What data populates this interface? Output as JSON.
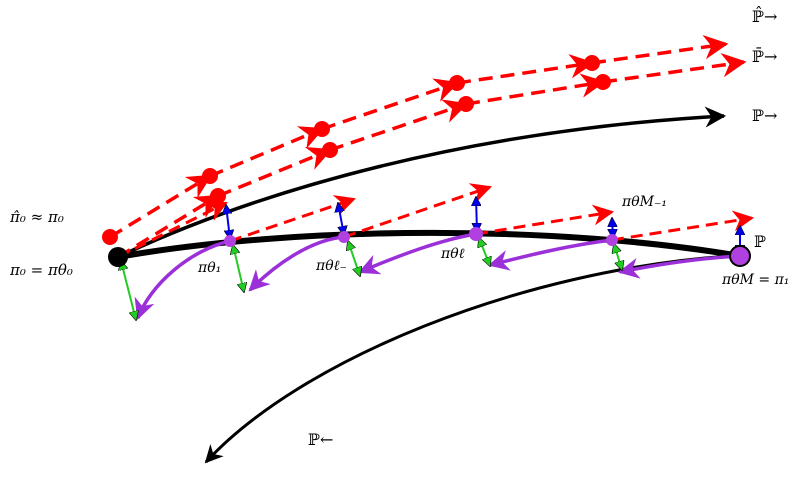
{
  "labels": {
    "p_hat_fwd": "ℙ̂→",
    "p_bar_fwd": "ℙ̄→",
    "p_fwd": "ℙ→",
    "p_bwd": "ℙ←",
    "p_plain": "ℙ",
    "pi0_approx": "π̂₀ ≈ π₀",
    "pi0_eq": "π₀ = πθ₀",
    "pi_theta1": "πθ₁",
    "pi_theta_l_minus": "πθℓ₋",
    "pi_theta_l": "πθℓ",
    "pi_theta_M_minus_1": "πθM₋₁",
    "pi_theta_M": "πθM = π₁"
  },
  "colors": {
    "main_curve": "#000000",
    "estimated_path": "#ff0000",
    "backward_step": "#9b30d9",
    "correction_up": "#0000ee",
    "correction_down": "#22cc22",
    "start_node": "#000000",
    "end_node": "#b040e0"
  }
}
